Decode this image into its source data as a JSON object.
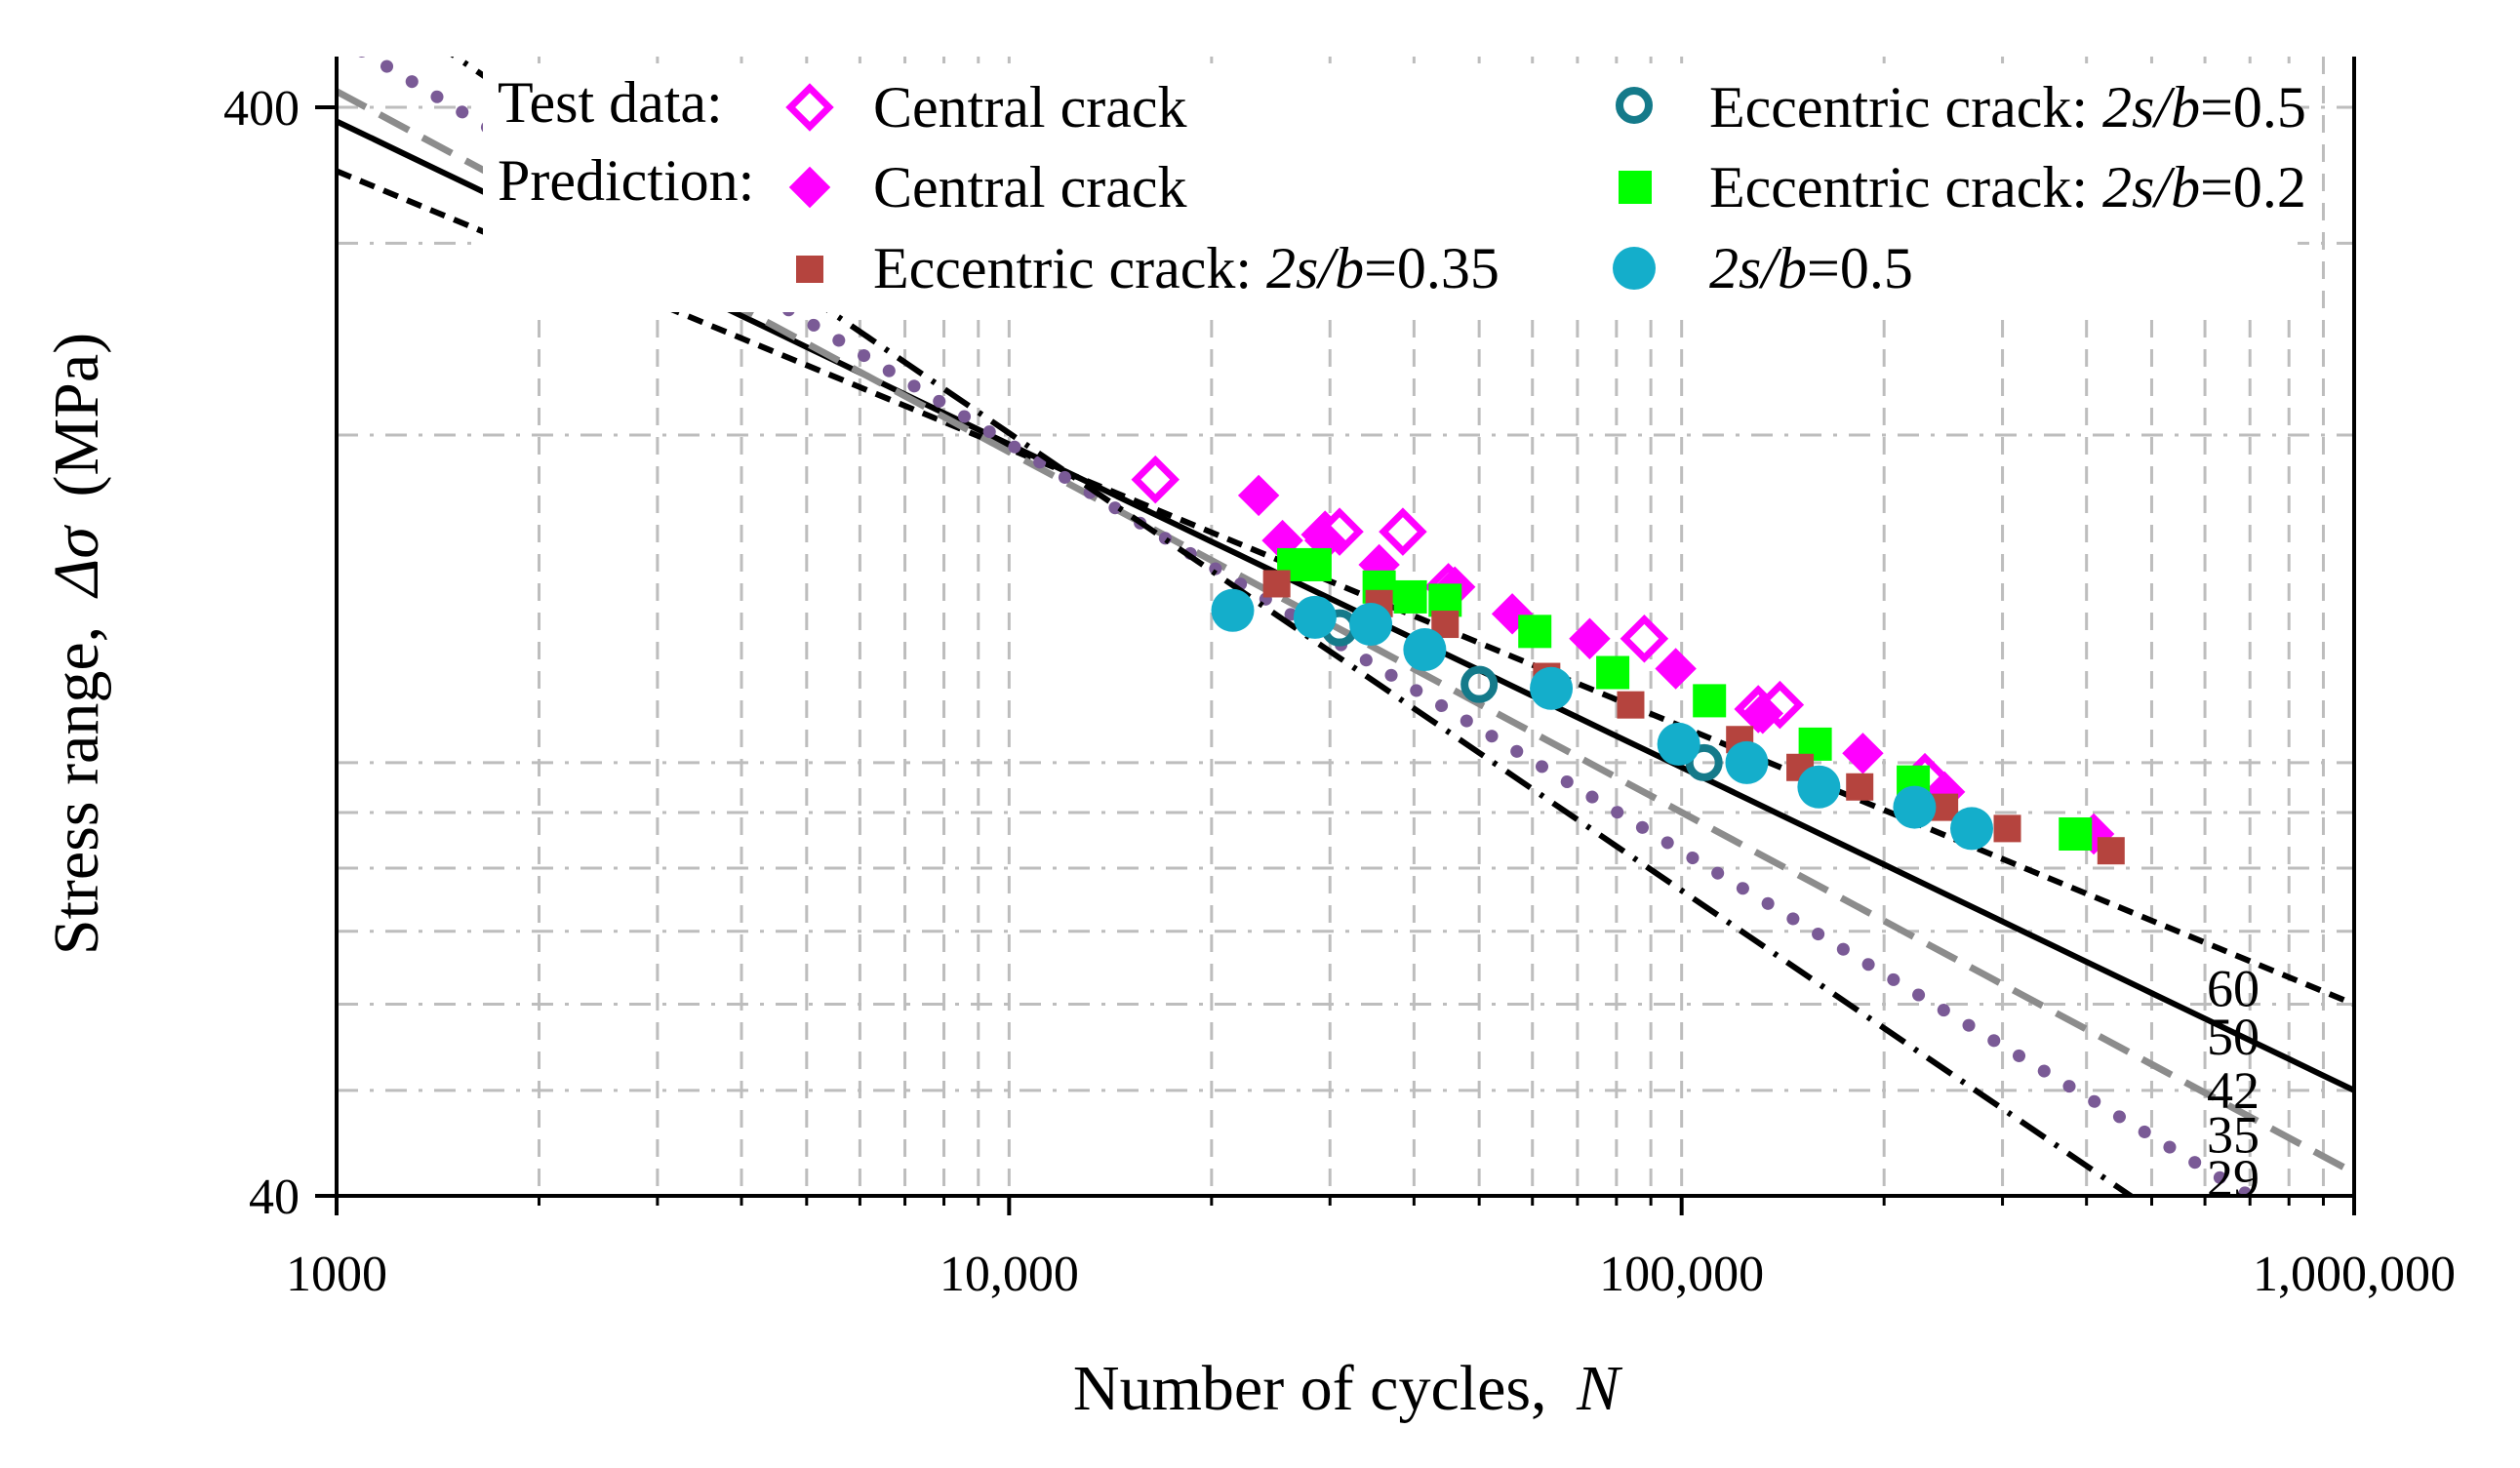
{
  "colors": {
    "magenta": "#FF00FF",
    "green": "#00FF00",
    "red": "#B5443E",
    "cyan": "#14AECB",
    "teal": "#147A8A",
    "gray": "#8C8C8C",
    "purple": "#7A5A96",
    "black": "#000000"
  },
  "chart_data": {
    "type": "scatter",
    "xlabel_prefix": "Number of cycles,",
    "xlabel_var": "N",
    "ylabel_prefix": "Stress range,",
    "ylabel_var": "Δσ",
    "ylabel_unit": "(MPa)",
    "xscale": "log",
    "yscale": "log",
    "xlim": [
      1000,
      1000000
    ],
    "ylim": [
      40,
      400
    ],
    "grid": true,
    "x_ticks": [
      {
        "value": 1000,
        "label": "1000"
      },
      {
        "value": 10000,
        "label": "10,000"
      },
      {
        "value": 100000,
        "label": "100,000"
      },
      {
        "value": 1000000,
        "label": "1,000,000"
      }
    ],
    "y_ticks": [
      {
        "value": 40,
        "label": "40"
      },
      {
        "value": 400,
        "label": "400"
      }
    ],
    "legend": {
      "test_data_label": "Test data:",
      "prediction_label": "Prediction:",
      "entries": [
        {
          "key": "test_central",
          "text": "Central crack"
        },
        {
          "key": "test_ecc05",
          "text": "Eccentric crack: ",
          "suffix": "2s/b",
          "value": "=0.5"
        },
        {
          "key": "pred_central",
          "text": "Central crack"
        },
        {
          "key": "pred_ecc02",
          "text": "Eccentric crack: ",
          "suffix": "2s/b",
          "value": "=0.2"
        },
        {
          "key": "pred_ecc035",
          "text": "Eccentric crack: ",
          "suffix": "2s/b",
          "value": "=0.35"
        },
        {
          "key": "pred_ecc05",
          "text": "",
          "suffix": "2s/b",
          "value": "=0.5"
        }
      ]
    },
    "sn_curves": [
      {
        "label": "60",
        "C": 60,
        "m": 3.92,
        "style": "dashed-black"
      },
      {
        "label": "50",
        "C": 50,
        "m": 3.37,
        "style": "solid-black"
      },
      {
        "label": "42",
        "C": 42,
        "m": 3.02,
        "style": "dashed-gray"
      },
      {
        "label": "35",
        "C": 35,
        "m": 2.67,
        "style": "dotted-purple"
      },
      {
        "label": "29",
        "C": 29,
        "m": 2.38,
        "style": "dashdot-black"
      }
    ],
    "series": [
      {
        "name": "Test data: Central crack",
        "key": "test_central",
        "marker": "open-diamond",
        "points": [
          [
            16500,
            182
          ],
          [
            29500,
            162
          ],
          [
            31000,
            163
          ],
          [
            38500,
            163
          ],
          [
            45000,
            145
          ],
          [
            88000,
            130
          ],
          [
            130000,
            112
          ],
          [
            140000,
            113
          ],
          [
            230000,
            97
          ]
        ]
      },
      {
        "name": "Test data: Eccentric crack 2s/b=0.5",
        "key": "test_ecc05",
        "marker": "open-circle",
        "points": [
          [
            31000,
            133
          ],
          [
            50000,
            118
          ],
          [
            108000,
            100
          ]
        ]
      },
      {
        "name": "Prediction: Central crack",
        "key": "pred_central",
        "marker": "filled-diamond",
        "points": [
          [
            23500,
            176
          ],
          [
            25500,
            160
          ],
          [
            29500,
            160
          ],
          [
            35500,
            152
          ],
          [
            46000,
            145
          ],
          [
            56000,
            137
          ],
          [
            73000,
            130
          ],
          [
            98000,
            122
          ],
          [
            132000,
            111
          ],
          [
            186000,
            102
          ],
          [
            246000,
            94
          ],
          [
            410000,
            86
          ]
        ]
      },
      {
        "name": "Prediction: Eccentric crack 2s/b=0.2",
        "key": "pred_ecc02",
        "marker": "filled-square",
        "points": [
          [
            26500,
            152
          ],
          [
            28500,
            152
          ],
          [
            35500,
            145
          ],
          [
            39500,
            142
          ],
          [
            44500,
            141
          ],
          [
            60500,
            132
          ],
          [
            79000,
            121
          ],
          [
            110000,
            114
          ],
          [
            158000,
            104
          ],
          [
            221000,
            96
          ],
          [
            385000,
            86
          ]
        ]
      },
      {
        "name": "Prediction: Eccentric crack 2s/b=0.35",
        "key": "pred_ecc035",
        "marker": "filled-square-small",
        "points": [
          [
            25000,
            146
          ],
          [
            35500,
            140
          ],
          [
            44500,
            134
          ],
          [
            63000,
            120
          ],
          [
            84000,
            113
          ],
          [
            122000,
            105
          ],
          [
            150000,
            99
          ],
          [
            184000,
            95
          ],
          [
            246000,
            91
          ],
          [
            305000,
            87
          ],
          [
            435000,
            83
          ]
        ]
      },
      {
        "name": "Prediction: 2s/b=0.5",
        "key": "pred_ecc05",
        "marker": "filled-circle",
        "points": [
          [
            21500,
            138
          ],
          [
            28500,
            136
          ],
          [
            34500,
            134
          ],
          [
            41500,
            127
          ],
          [
            64000,
            117
          ],
          [
            99000,
            104
          ],
          [
            125000,
            100
          ],
          [
            160000,
            95
          ],
          [
            222000,
            91
          ],
          [
            270000,
            87
          ]
        ]
      }
    ]
  }
}
